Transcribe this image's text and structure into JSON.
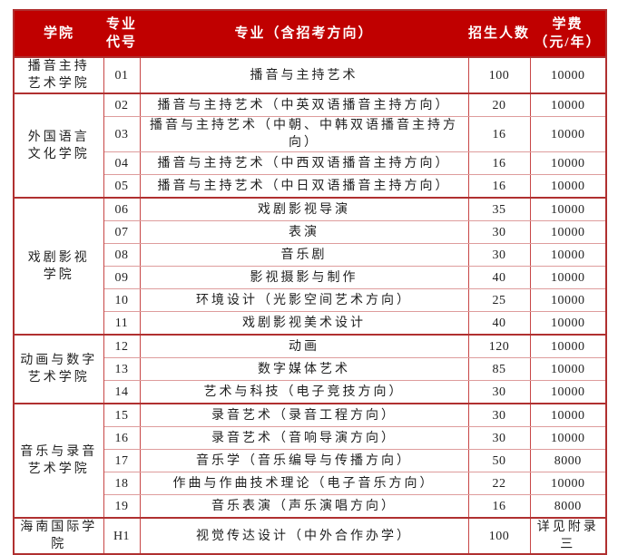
{
  "table": {
    "header": {
      "college": "学院",
      "major_code": "专业\n代号",
      "major": "专业（含招考方向）",
      "enrollment": "招生人数",
      "tuition": "学费\n（元/年）"
    },
    "colors": {
      "header_bg": "#c00000",
      "header_text": "#ffffff",
      "border_strong": "#b03030",
      "border_light": "#de9c9c",
      "border_vertical": "#c74646",
      "body_text": "#1f1f1f"
    },
    "groups": [
      {
        "college": "播音主持\n艺术学院",
        "rows": [
          {
            "code": "01",
            "major": "播音与主持艺术",
            "enrollment": "100",
            "tuition": "10000"
          }
        ]
      },
      {
        "college": "外国语言\n文化学院",
        "rows": [
          {
            "code": "02",
            "major": "播音与主持艺术（中英双语播音主持方向）",
            "enrollment": "20",
            "tuition": "10000"
          },
          {
            "code": "03",
            "major": "播音与主持艺术（中朝、中韩双语播音主持方向）",
            "enrollment": "16",
            "tuition": "10000"
          },
          {
            "code": "04",
            "major": "播音与主持艺术（中西双语播音主持方向）",
            "enrollment": "16",
            "tuition": "10000"
          },
          {
            "code": "05",
            "major": "播音与主持艺术（中日双语播音主持方向）",
            "enrollment": "16",
            "tuition": "10000"
          }
        ]
      },
      {
        "college": "戏剧影视\n学院",
        "rows": [
          {
            "code": "06",
            "major": "戏剧影视导演",
            "enrollment": "35",
            "tuition": "10000"
          },
          {
            "code": "07",
            "major": "表演",
            "enrollment": "30",
            "tuition": "10000"
          },
          {
            "code": "08",
            "major": "音乐剧",
            "enrollment": "30",
            "tuition": "10000"
          },
          {
            "code": "09",
            "major": "影视摄影与制作",
            "enrollment": "40",
            "tuition": "10000"
          },
          {
            "code": "10",
            "major": "环境设计（光影空间艺术方向）",
            "enrollment": "25",
            "tuition": "10000"
          },
          {
            "code": "11",
            "major": "戏剧影视美术设计",
            "enrollment": "40",
            "tuition": "10000"
          }
        ]
      },
      {
        "college": "动画与数字\n艺术学院",
        "rows": [
          {
            "code": "12",
            "major": "动画",
            "enrollment": "120",
            "tuition": "10000"
          },
          {
            "code": "13",
            "major": "数字媒体艺术",
            "enrollment": "85",
            "tuition": "10000"
          },
          {
            "code": "14",
            "major": "艺术与科技（电子竞技方向）",
            "enrollment": "30",
            "tuition": "10000"
          }
        ]
      },
      {
        "college": "音乐与录音\n艺术学院",
        "rows": [
          {
            "code": "15",
            "major": "录音艺术（录音工程方向）",
            "enrollment": "30",
            "tuition": "10000"
          },
          {
            "code": "16",
            "major": "录音艺术（音响导演方向）",
            "enrollment": "30",
            "tuition": "10000"
          },
          {
            "code": "17",
            "major": "音乐学（音乐编导与传播方向）",
            "enrollment": "50",
            "tuition": "8000"
          },
          {
            "code": "18",
            "major": "作曲与作曲技术理论（电子音乐方向）",
            "enrollment": "22",
            "tuition": "10000"
          },
          {
            "code": "19",
            "major": "音乐表演（声乐演唱方向）",
            "enrollment": "16",
            "tuition": "8000"
          }
        ]
      },
      {
        "college": "海南国际学院",
        "rows": [
          {
            "code": "H1",
            "major": "视觉传达设计（中外合作办学）",
            "enrollment": "100",
            "tuition": "详见附录三"
          }
        ]
      }
    ]
  }
}
